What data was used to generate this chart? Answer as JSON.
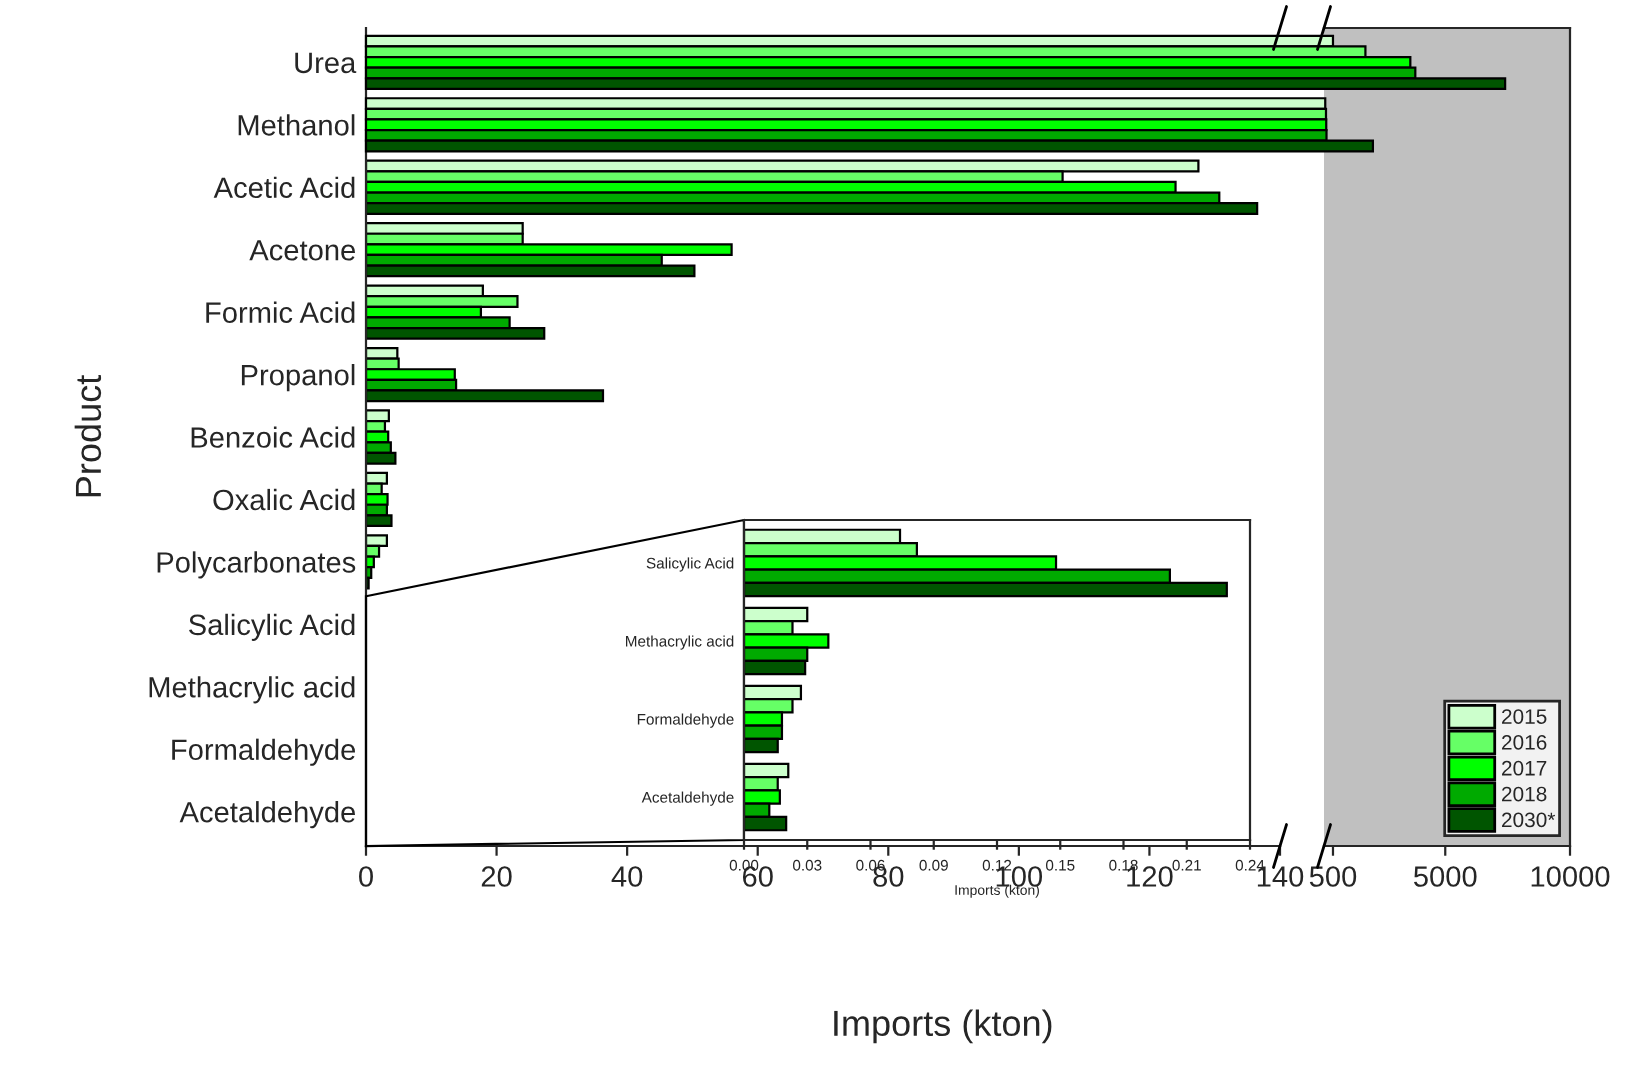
{
  "chart_data": [
    {
      "type": "bar",
      "orientation": "horizontal",
      "xlabel": "Imports (kton)",
      "ylabel": "Product",
      "categories": [
        "Urea",
        "Methanol",
        "Acetic Acid",
        "Acetone",
        "Formic Acid",
        "Propanol",
        "Benzoic Acid",
        "Oxalic Acid",
        "Polycarbonates",
        "Salicylic Acid",
        "Methacrylic acid",
        "Formaldehyde",
        "Acetaldehyde"
      ],
      "xlim": [
        0,
        140
      ],
      "xticks": [
        0,
        20,
        40,
        60,
        80,
        100,
        120,
        140
      ],
      "grid": false,
      "legend": false,
      "series": [
        {
          "color": "#ccffcc",
          "values": [
            null,
            null,
            127.5,
            24,
            17.9,
            4.8,
            3.5,
            3.2,
            3.2,
            null,
            null,
            null,
            null
          ]
        },
        {
          "color": "#66ff66",
          "values": [
            null,
            null,
            106.7,
            24,
            23.2,
            5,
            2.9,
            2.4,
            2,
            null,
            null,
            null,
            null
          ]
        },
        {
          "color": "#00ff00",
          "values": [
            null,
            null,
            124,
            56,
            17.6,
            13.6,
            3.4,
            3.3,
            1.2,
            null,
            null,
            null,
            null
          ]
        },
        {
          "color": "#00aa00",
          "values": [
            null,
            null,
            130.7,
            45.3,
            22,
            13.8,
            3.8,
            3.2,
            0.8,
            null,
            null,
            null,
            null
          ]
        },
        {
          "color": "#005500",
          "values": [
            null,
            null,
            136.5,
            50.3,
            27.3,
            36.3,
            4.5,
            3.9,
            0.4,
            null,
            null,
            null,
            null
          ]
        }
      ]
    },
    {
      "type": "bar",
      "orientation": "horizontal",
      "xlim": [
        140,
        10000
      ],
      "xticks": [
        500,
        5000,
        10000
      ],
      "tick_labels": "x",
      "grid": false,
      "legend": "bottom right",
      "series": [
        {
          "name": "2015",
          "color": "#ccffcc",
          "values": [
            500,
            190,
            null,
            null,
            null,
            null,
            null,
            null,
            null,
            null,
            null,
            null,
            null
          ]
        },
        {
          "name": "2016",
          "color": "#66ff66",
          "values": [
            1800,
            220,
            null,
            null,
            null,
            null,
            null,
            null,
            null,
            null,
            null,
            null,
            null
          ]
        },
        {
          "name": "2017",
          "color": "#00ff00",
          "values": [
            3600,
            230,
            null,
            null,
            null,
            null,
            null,
            null,
            null,
            null,
            null,
            null,
            null
          ]
        },
        {
          "name": "2018",
          "color": "#00aa00",
          "values": [
            3800,
            240,
            null,
            null,
            null,
            null,
            null,
            null,
            null,
            null,
            null,
            null,
            null
          ]
        },
        {
          "name": "2030*",
          "color": "#005500",
          "values": [
            7400,
            2100,
            null,
            null,
            null,
            null,
            null,
            null,
            null,
            null,
            null,
            null,
            null
          ]
        }
      ]
    },
    {
      "type": "bar",
      "orientation": "horizontal",
      "xlabel": "Imports (kton)",
      "categories": [
        "Salicylic Acid",
        "Methacrylic acid",
        "Formaldehyde",
        "Acetaldehyde"
      ],
      "xlim": [
        0,
        0.24
      ],
      "xticks": [
        {
          "value": 0,
          "label": "0.00"
        },
        {
          "value": 0.03,
          "label": "0.03"
        },
        {
          "value": 0.06,
          "label": "0.06"
        },
        {
          "value": 0.09,
          "label": "0.09"
        },
        {
          "value": 0.12,
          "label": "0.12"
        },
        {
          "value": 0.15,
          "label": "0.15"
        },
        {
          "value": 0.18,
          "label": "0.18"
        },
        {
          "value": 0.21,
          "label": "0.21"
        },
        {
          "value": 0.24,
          "label": "0.24"
        }
      ],
      "grid": false,
      "legend": false,
      "series": [
        {
          "color": "#ccffcc",
          "values": [
            0.074,
            0.03,
            0.027,
            0.021
          ]
        },
        {
          "color": "#66ff66",
          "values": [
            0.082,
            0.023,
            0.023,
            0.016
          ]
        },
        {
          "color": "#00ff00",
          "values": [
            0.148,
            0.04,
            0.018,
            0.017
          ]
        },
        {
          "color": "#00aa00",
          "values": [
            0.202,
            0.03,
            0.018,
            0.012
          ]
        },
        {
          "color": "#005500",
          "values": [
            0.229,
            0.029,
            0.016,
            0.02
          ]
        }
      ]
    }
  ]
}
